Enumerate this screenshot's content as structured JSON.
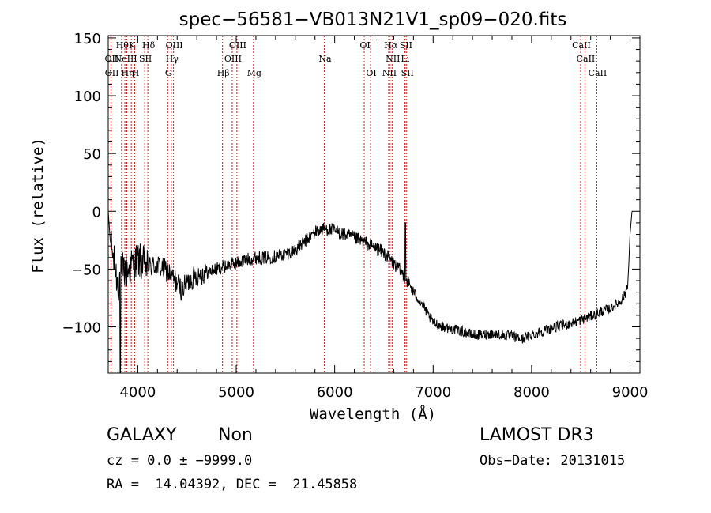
{
  "chart_data": {
    "type": "line",
    "title": "spec−56581−VB013N21V1_sp09−020.fits",
    "xlabel": "Wavelength (Å)",
    "ylabel": "Flux (relative)",
    "xlim": [
      3700,
      9100
    ],
    "ylim": [
      -140,
      152
    ],
    "xticks": [
      4000,
      5000,
      6000,
      7000,
      8000,
      9000
    ],
    "yticks": [
      150,
      100,
      50,
      0,
      -50,
      -100
    ],
    "xtick_labels": [
      "4000",
      "5000",
      "6000",
      "7000",
      "8000",
      "9000"
    ],
    "ytick_labels": [
      "150",
      "100",
      "50",
      "0",
      "−50",
      "−100"
    ],
    "grid": false,
    "spectrum_anchors": [
      [
        3700,
        0
      ],
      [
        3720,
        -25
      ],
      [
        3760,
        -45
      ],
      [
        3800,
        -65
      ],
      [
        3820,
        -55
      ],
      [
        3850,
        -50
      ],
      [
        3900,
        -52
      ],
      [
        3950,
        -45
      ],
      [
        4000,
        -42
      ],
      [
        4100,
        -48
      ],
      [
        4200,
        -47
      ],
      [
        4300,
        -52
      ],
      [
        4400,
        -62
      ],
      [
        4450,
        -68
      ],
      [
        4500,
        -62
      ],
      [
        4600,
        -55
      ],
      [
        4700,
        -53
      ],
      [
        4800,
        -50
      ],
      [
        4900,
        -47
      ],
      [
        5000,
        -45
      ],
      [
        5100,
        -42
      ],
      [
        5200,
        -40
      ],
      [
        5300,
        -40
      ],
      [
        5400,
        -39
      ],
      [
        5500,
        -37
      ],
      [
        5600,
        -33
      ],
      [
        5700,
        -26
      ],
      [
        5800,
        -18
      ],
      [
        5900,
        -15
      ],
      [
        6000,
        -17
      ],
      [
        6100,
        -20
      ],
      [
        6200,
        -23
      ],
      [
        6300,
        -27
      ],
      [
        6400,
        -31
      ],
      [
        6500,
        -36
      ],
      [
        6600,
        -45
      ],
      [
        6700,
        -55
      ],
      [
        6750,
        -62
      ],
      [
        6800,
        -70
      ],
      [
        6850,
        -76
      ],
      [
        6900,
        -82
      ],
      [
        6950,
        -90
      ],
      [
        7000,
        -96
      ],
      [
        7100,
        -100
      ],
      [
        7200,
        -102
      ],
      [
        7300,
        -104
      ],
      [
        7400,
        -107
      ],
      [
        7500,
        -107
      ],
      [
        7600,
        -106
      ],
      [
        7700,
        -107
      ],
      [
        7800,
        -108
      ],
      [
        7900,
        -111
      ],
      [
        8000,
        -107
      ],
      [
        8100,
        -104
      ],
      [
        8200,
        -101
      ],
      [
        8300,
        -99
      ],
      [
        8400,
        -97
      ],
      [
        8500,
        -94
      ],
      [
        8600,
        -91
      ],
      [
        8700,
        -87
      ],
      [
        8800,
        -84
      ],
      [
        8900,
        -78
      ],
      [
        8950,
        -72
      ],
      [
        8980,
        -60
      ],
      [
        9000,
        -20
      ],
      [
        9020,
        0
      ]
    ],
    "spikes": [
      {
        "x": 3822,
        "y": -142
      },
      {
        "x": 6718,
        "y": -10
      }
    ],
    "lines": [
      {
        "x": 3727,
        "label": "OII",
        "row": 1
      },
      {
        "x": 3729,
        "label": "OII",
        "row": 2
      },
      {
        "x": 3835,
        "label": "Hθ",
        "row": 0
      },
      {
        "x": 3869,
        "label": "NeIII",
        "row": 1
      },
      {
        "x": 3889,
        "label": "Hη",
        "row": 2
      },
      {
        "x": 3934,
        "label": "K",
        "row": 0
      },
      {
        "x": 3969,
        "label": "H",
        "row": 2
      },
      {
        "x": 4070,
        "label": "SII",
        "row": 1
      },
      {
        "x": 4102,
        "label": "Hδ",
        "row": 0
      },
      {
        "x": 4304,
        "label": "G",
        "row": 2
      },
      {
        "x": 4341,
        "label": "Hγ",
        "row": 1
      },
      {
        "x": 4363,
        "label": "OIII",
        "row": 0
      },
      {
        "x": 4861,
        "label": "Hβ",
        "row": 2
      },
      {
        "x": 4959,
        "label": "OIII",
        "row": 1
      },
      {
        "x": 5007,
        "label": "OIII",
        "row": 0
      },
      {
        "x": 5175,
        "label": "Mg",
        "row": 2
      },
      {
        "x": 5894,
        "label": "Na",
        "row": 1
      },
      {
        "x": 6300,
        "label": "OI",
        "row": 0
      },
      {
        "x": 6364,
        "label": "OI",
        "row": 2
      },
      {
        "x": 6548,
        "label": "NII",
        "row": 2
      },
      {
        "x": 6563,
        "label": "Hα",
        "row": 0
      },
      {
        "x": 6583,
        "label": "NII",
        "row": 1
      },
      {
        "x": 6708,
        "label": "Li",
        "row": 1
      },
      {
        "x": 6716,
        "label": "SII",
        "row": 0
      },
      {
        "x": 6731,
        "label": "SII",
        "row": 2
      },
      {
        "x": 8498,
        "label": "CaII",
        "row": 0
      },
      {
        "x": 8542,
        "label": "CaII",
        "row": 1
      },
      {
        "x": 8662,
        "label": "CaII",
        "row": 2
      }
    ]
  },
  "info": {
    "class": "GALAXY",
    "subclass": "Non",
    "survey": "LAMOST DR3",
    "cz": "cz = 0.0 ± −9999.0",
    "obsdate": "Obs−Date: 20131015",
    "radec": "RA =  14.04392, DEC =  21.45858"
  }
}
